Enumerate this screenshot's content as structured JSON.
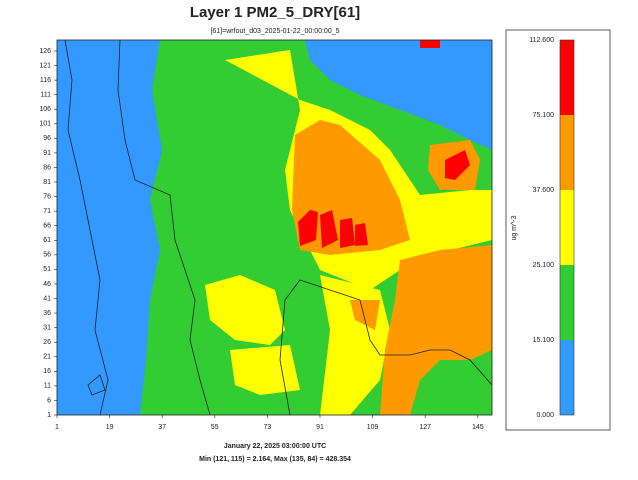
{
  "title": "Layer 1 PM2_5_DRY[61]",
  "subtitle": "[61]=wrfout_d03_2025-01-22_00:00:00_5",
  "x_ticks": [
    "1",
    "19",
    "37",
    "55",
    "73",
    "91",
    "109",
    "127",
    "145"
  ],
  "y_ticks": [
    "1",
    "6",
    "11",
    "16",
    "21",
    "26",
    "31",
    "36",
    "41",
    "46",
    "51",
    "56",
    "61",
    "66",
    "71",
    "76",
    "81",
    "86",
    "91",
    "96",
    "101",
    "106",
    "111",
    "116",
    "121",
    "126"
  ],
  "legend": {
    "unit": "ug m^-3",
    "levels": [
      "112.600",
      "75.100",
      "37.600",
      "25.100",
      "15.100",
      "0.000"
    ]
  },
  "footer": {
    "time": "January 22, 2025 03:00:00 UTC",
    "minmax": "Min (121, 115) = 2.164, Max (135, 84) = 428.354"
  }
}
